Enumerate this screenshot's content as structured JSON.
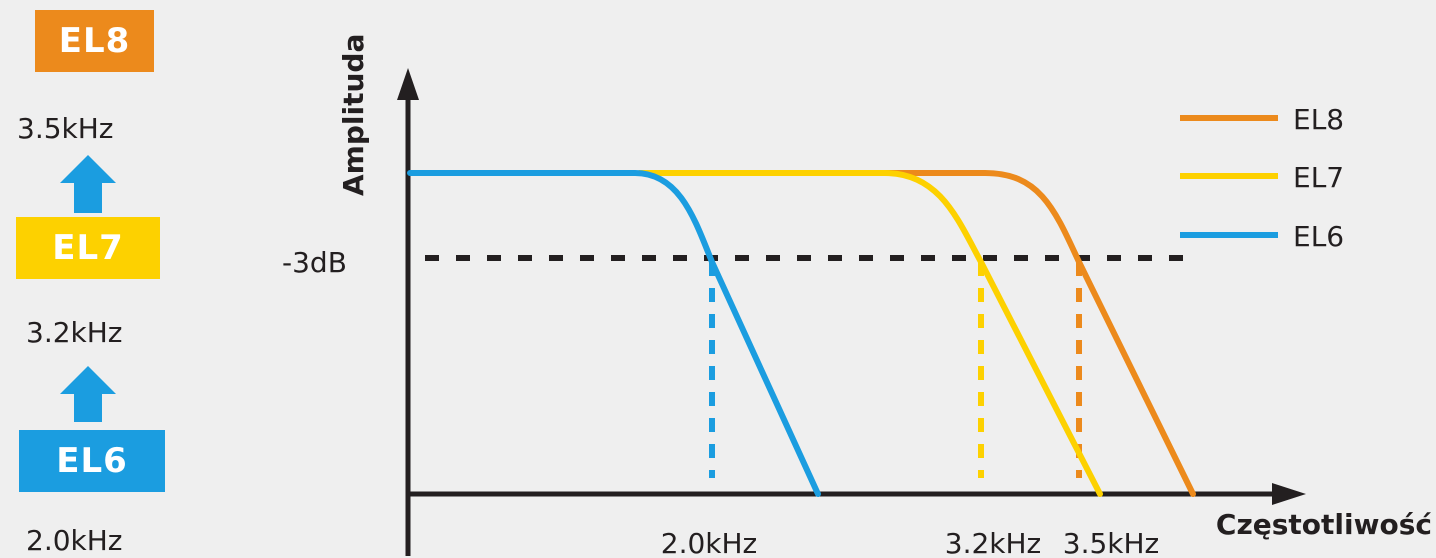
{
  "colors": {
    "background": "#efefef",
    "axis": "#231f20",
    "el8": "#ec8a1c",
    "el7": "#fdd100",
    "el6": "#1b9de0"
  },
  "ladder": {
    "el8": {
      "label": "EL8",
      "freq": "3.5kHz"
    },
    "el7": {
      "label": "EL7",
      "freq": "3.2kHz"
    },
    "el6": {
      "label": "EL6",
      "freq": "2.0kHz"
    },
    "arrow_icon": "arrow-up-icon"
  },
  "chart_data": {
    "type": "line",
    "ylabel": "Amplituda",
    "xlabel": "Częstotliwość",
    "ref_line_label": "-3dB",
    "legend_position": "top-right",
    "x_tick_labels": [
      "2.0kHz",
      "3.2kHz",
      "3.5kHz"
    ],
    "series": [
      {
        "name": "EL8",
        "cutoff_khz": 3.5,
        "cutoff_label": "3.5kHz"
      },
      {
        "name": "EL7",
        "cutoff_khz": 3.2,
        "cutoff_label": "3.2kHz"
      },
      {
        "name": "EL6",
        "cutoff_khz": 2.0,
        "cutoff_label": "2.0kHz"
      }
    ]
  }
}
